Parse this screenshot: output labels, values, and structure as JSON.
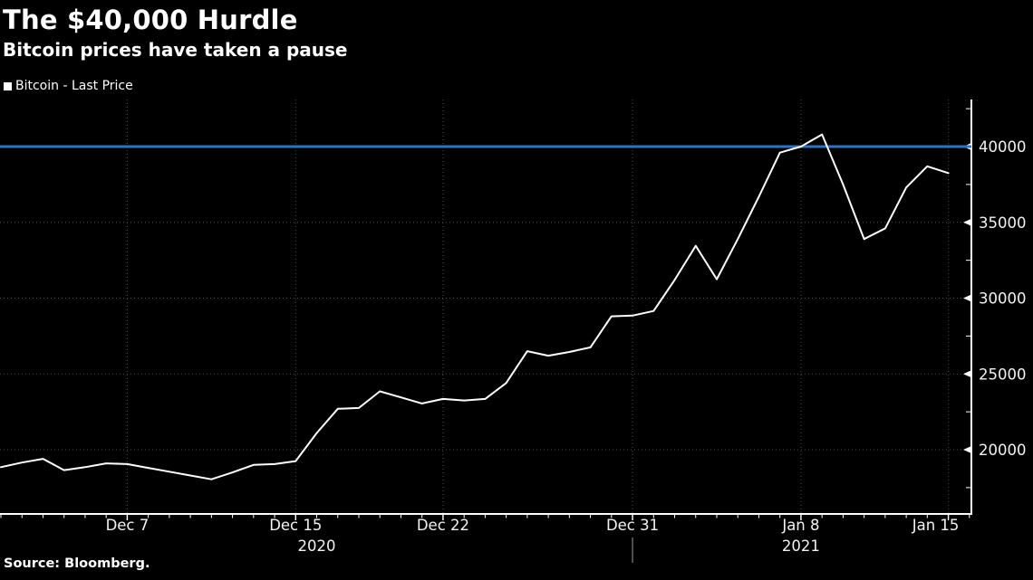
{
  "source": {
    "label": "Source: Bloomberg."
  },
  "chart_data": {
    "type": "line",
    "title": "The $40,000 Hurdle",
    "subtitle": "Bitcoin prices have taken a pause",
    "legend_position": "top-left",
    "grid": "dotted",
    "background_color": "#000000",
    "series": [
      {
        "name": "Bitcoin - Last Price",
        "color": "#ffffff",
        "dates": [
          "Dec 1",
          "Dec 2",
          "Dec 3",
          "Dec 4",
          "Dec 5",
          "Dec 6",
          "Dec 7",
          "Dec 8",
          "Dec 9",
          "Dec 10",
          "Dec 11",
          "Dec 12",
          "Dec 13",
          "Dec 14",
          "Dec 15",
          "Dec 16",
          "Dec 17",
          "Dec 18",
          "Dec 19",
          "Dec 20",
          "Dec 21",
          "Dec 22",
          "Dec 23",
          "Dec 24",
          "Dec 25",
          "Dec 26",
          "Dec 27",
          "Dec 28",
          "Dec 29",
          "Dec 30",
          "Dec 31",
          "Jan 1",
          "Jan 2",
          "Jan 3",
          "Jan 4",
          "Jan 5",
          "Jan 6",
          "Jan 7",
          "Jan 8",
          "Jan 9",
          "Jan 10",
          "Jan 11",
          "Jan 12",
          "Jan 13",
          "Jan 14",
          "Jan 15"
        ],
        "values": [
          18850,
          19150,
          19400,
          18650,
          18850,
          19100,
          19050,
          18800,
          18550,
          18300,
          18050,
          18500,
          19000,
          19050,
          19250,
          21100,
          22700,
          22750,
          23850,
          23450,
          23050,
          23350,
          23250,
          23350,
          24400,
          26500,
          26200,
          26450,
          26750,
          28800,
          28850,
          29150,
          31200,
          33450,
          31250,
          33900,
          36700,
          39600,
          40000,
          40800,
          37500,
          33900,
          34600,
          37300,
          38700,
          38250
        ]
      }
    ],
    "reference_line": {
      "value": 40000,
      "color": "#2e72c4"
    },
    "y_axis": {
      "side": "right",
      "ticks": [
        20000,
        25000,
        30000,
        35000,
        40000
      ],
      "minor_ticks": [
        17500,
        22500,
        27500,
        32500,
        37500,
        42500
      ],
      "range": [
        15800,
        43100
      ]
    },
    "x_axis": {
      "ticks": [
        {
          "label": "Dec 7",
          "day": 6,
          "dx": 0
        },
        {
          "label": "Dec 15",
          "day": 14,
          "dx": 0
        },
        {
          "label": "Dec 22",
          "day": 21,
          "dx": 0
        },
        {
          "label": "Dec 31",
          "day": 30,
          "dx": 0
        },
        {
          "label": "Jan 8",
          "day": 38,
          "dx": 0
        },
        {
          "label": "Jan 15",
          "day": 45,
          "dx": -14
        }
      ],
      "year_labels": [
        {
          "label": "2020",
          "day": 15
        },
        {
          "label": "2021",
          "day": 38
        }
      ],
      "year_separator_day": 30
    },
    "colors": {
      "line": "#ffffff",
      "reference": "#2e72c4",
      "grid": "#4c4c4c",
      "axis": "#ffffff",
      "text": "#f2f2f2"
    }
  }
}
